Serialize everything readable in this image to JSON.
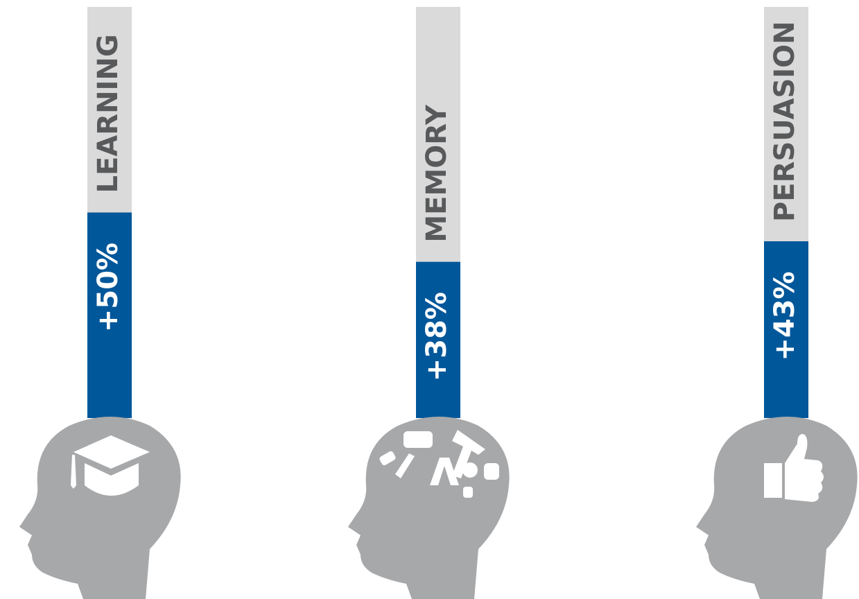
{
  "chart_data": {
    "type": "bar",
    "categories": [
      "LEARNING",
      "MEMORY",
      "PERSUASION"
    ],
    "values": [
      50,
      38,
      43
    ],
    "value_labels": [
      "+50%",
      "+38%",
      "+43%"
    ],
    "color": "#00579a",
    "ylim": [
      0,
      100
    ]
  }
}
